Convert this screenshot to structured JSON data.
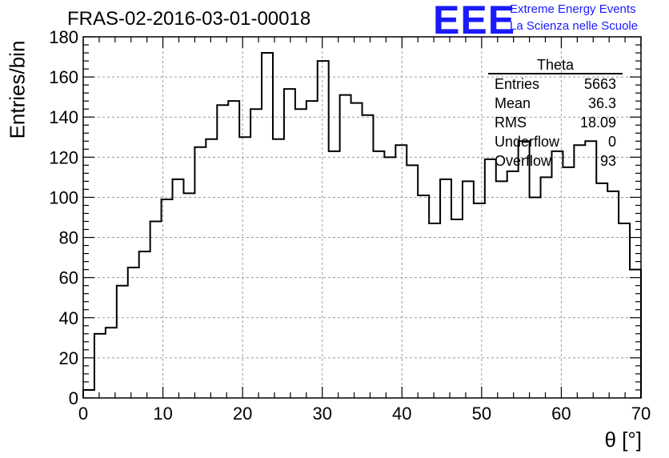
{
  "page": {
    "title": "FRAS-02-2016-03-01-00018",
    "logo": {
      "text": "EEE",
      "line1": "Extreme Energy Events",
      "line2": "La Scienza nelle Scuole",
      "color": "#1a1aff"
    }
  },
  "stats": {
    "title": "Theta",
    "rows": [
      {
        "key": "Entries",
        "value": "5663"
      },
      {
        "key": "Mean",
        "value": "36.3"
      },
      {
        "key": "RMS",
        "value": "18.09"
      },
      {
        "key": "Underflow",
        "value": "0"
      },
      {
        "key": "Overflow",
        "value": "93"
      }
    ]
  },
  "chart_data": {
    "type": "histogram",
    "title": "FRAS-02-2016-03-01-00018",
    "xlabel": "θ [°]",
    "ylabel": "Entries/bin",
    "xlim": [
      0,
      70
    ],
    "ylim": [
      0,
      180
    ],
    "bin_width": 1.4,
    "x_ticks": [
      0,
      10,
      20,
      30,
      40,
      50,
      60,
      70
    ],
    "y_ticks": [
      0,
      20,
      40,
      60,
      80,
      100,
      120,
      140,
      160,
      180
    ],
    "grid": true,
    "line_color": "#000000",
    "bin_edges": [
      0,
      1.4,
      2.8,
      4.2,
      5.6,
      7.0,
      8.4,
      9.8,
      11.2,
      12.6,
      14.0,
      15.4,
      16.8,
      18.2,
      19.6,
      21.0,
      22.4,
      23.8,
      25.2,
      26.6,
      28.0,
      29.4,
      30.8,
      32.2,
      33.6,
      35.0,
      36.4,
      37.8,
      39.2,
      40.6,
      42.0,
      43.4,
      44.8,
      46.2,
      47.6,
      49.0,
      50.4,
      51.8,
      53.2,
      54.6,
      56.0,
      57.4,
      58.8,
      60.2,
      61.6,
      63.0,
      64.4,
      65.8,
      67.2,
      68.6,
      70.0
    ],
    "values": [
      4,
      32,
      35,
      56,
      65,
      73,
      88,
      99,
      109,
      102,
      125,
      129,
      146,
      148,
      130,
      144,
      172,
      129,
      154,
      144,
      148,
      168,
      123,
      151,
      147,
      141,
      123,
      120,
      126,
      116,
      101,
      87,
      109,
      89,
      108,
      97,
      119,
      108,
      113,
      128,
      100,
      110,
      123,
      115,
      126,
      128,
      107,
      103,
      87,
      64
    ]
  }
}
